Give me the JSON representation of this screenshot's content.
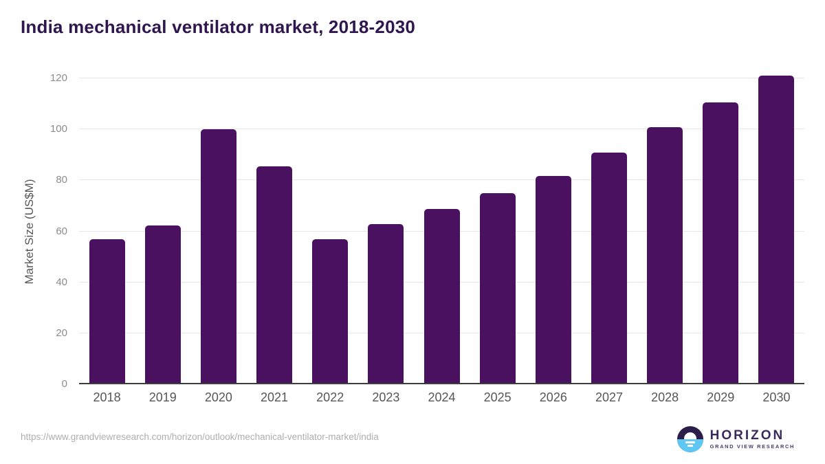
{
  "title": "India mechanical ventilator market, 2018-2030",
  "source_url": "https://www.grandviewresearch.com/horizon/outlook/mechanical-ventilator-market/india",
  "logo": {
    "name": "HORIZON",
    "subtitle": "GRAND VIEW RESEARCH",
    "icon": "horizon-sun-over-water-icon",
    "icon_colors": {
      "top": "#2c1d4a",
      "bottom": "#5ec7f2"
    }
  },
  "colors": {
    "bar": "#4a1161",
    "title_text": "#2f164e",
    "axis_label_text": "#575757",
    "tick_text": "#8b8b8b",
    "gridline": "#e7e7e7",
    "axis_line": "#3d3d3d",
    "url_text": "#aeaeae"
  },
  "chart_data": {
    "type": "bar",
    "title": "India mechanical ventilator market, 2018-2030",
    "xlabel": "",
    "ylabel": "Market Size (US$M)",
    "categories": [
      "2018",
      "2019",
      "2020",
      "2021",
      "2022",
      "2023",
      "2024",
      "2025",
      "2026",
      "2027",
      "2028",
      "2029",
      "2030"
    ],
    "values": [
      56.5,
      62.0,
      99.8,
      85.3,
      56.5,
      62.7,
      68.5,
      74.8,
      81.4,
      90.6,
      100.7,
      110.2,
      120.8
    ],
    "ylim": [
      0,
      120
    ],
    "yticks": [
      0,
      20,
      40,
      60,
      80,
      100,
      120
    ],
    "grid": true,
    "legend": "none",
    "bar_color": "#4a1161"
  }
}
